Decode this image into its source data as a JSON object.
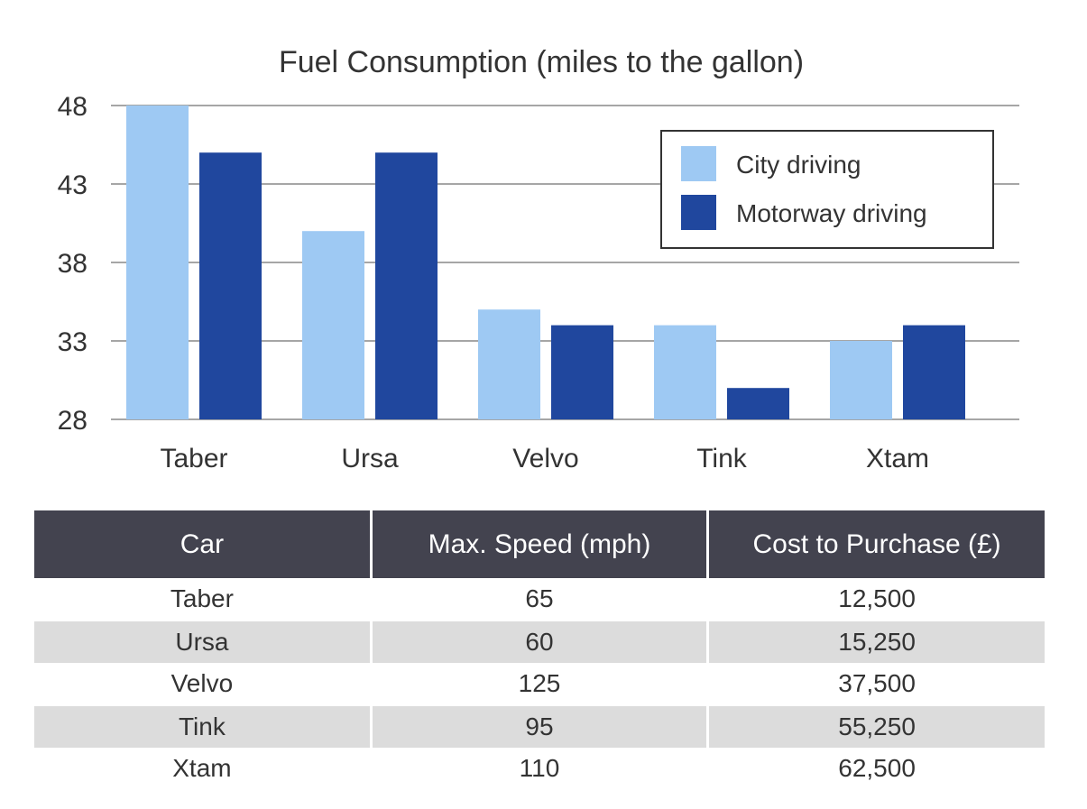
{
  "chart_data": {
    "type": "bar",
    "title": "Fuel Consumption (miles to the gallon)",
    "categories": [
      "Taber",
      "Ursa",
      "Velvo",
      "Tink",
      "Xtam"
    ],
    "series": [
      {
        "name": "City driving",
        "color": "#9ec9f3",
        "values": [
          48,
          40,
          35,
          34,
          33
        ]
      },
      {
        "name": "Motorway driving",
        "color": "#20479e",
        "values": [
          45,
          45,
          34,
          30,
          34
        ]
      }
    ],
    "yticks": [
      28,
      33,
      38,
      43,
      48
    ],
    "ylim": [
      28,
      48
    ],
    "xlabel": "",
    "ylabel": "",
    "grid": true,
    "legend_position": "top-right"
  },
  "table": {
    "headers": [
      "Car",
      "Max. Speed (mph)",
      "Cost to Purchase (£)"
    ],
    "rows": [
      [
        "Taber",
        "65",
        "12,500"
      ],
      [
        "Ursa",
        "60",
        "15,250"
      ],
      [
        "Velvo",
        "125",
        "37,500"
      ],
      [
        "Tink",
        "95",
        "55,250"
      ],
      [
        "Xtam",
        "110",
        "62,500"
      ]
    ]
  }
}
